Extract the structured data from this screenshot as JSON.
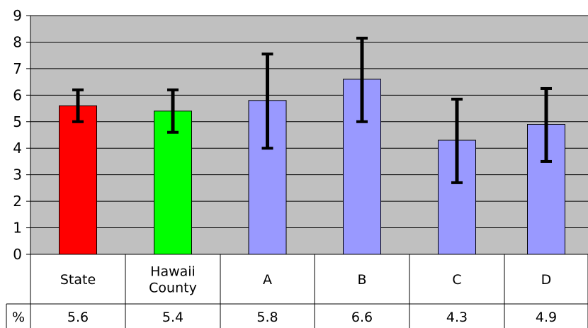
{
  "chart_data": {
    "type": "bar",
    "title": "",
    "xlabel": "",
    "ylabel": "",
    "ylim": [
      0,
      9
    ],
    "yticks": [
      "0",
      "1",
      "2",
      "3",
      "4",
      "5",
      "6",
      "7",
      "8",
      "9"
    ],
    "categories": [
      {
        "lines": [
          "State"
        ]
      },
      {
        "lines": [
          "Hawaii",
          "County"
        ]
      },
      {
        "lines": [
          "A"
        ]
      },
      {
        "lines": [
          "B"
        ]
      },
      {
        "lines": [
          "C"
        ]
      },
      {
        "lines": [
          "D"
        ]
      }
    ],
    "values": [
      5.6,
      5.4,
      5.8,
      6.6,
      4.3,
      4.9
    ],
    "error_low": [
      5.0,
      4.6,
      4.0,
      5.0,
      2.7,
      3.5
    ],
    "error_high": [
      6.2,
      6.2,
      7.55,
      8.15,
      5.85,
      6.25
    ],
    "bar_colors": [
      "#ff0000",
      "#00ff00",
      "#9999ff",
      "#9999ff",
      "#9999ff",
      "#9999ff"
    ],
    "plot_background": "#c0c0c0",
    "grid": true,
    "table": {
      "row_label": "%",
      "values": [
        "5.6",
        "5.4",
        "5.8",
        "6.6",
        "4.3",
        "4.9"
      ]
    }
  }
}
